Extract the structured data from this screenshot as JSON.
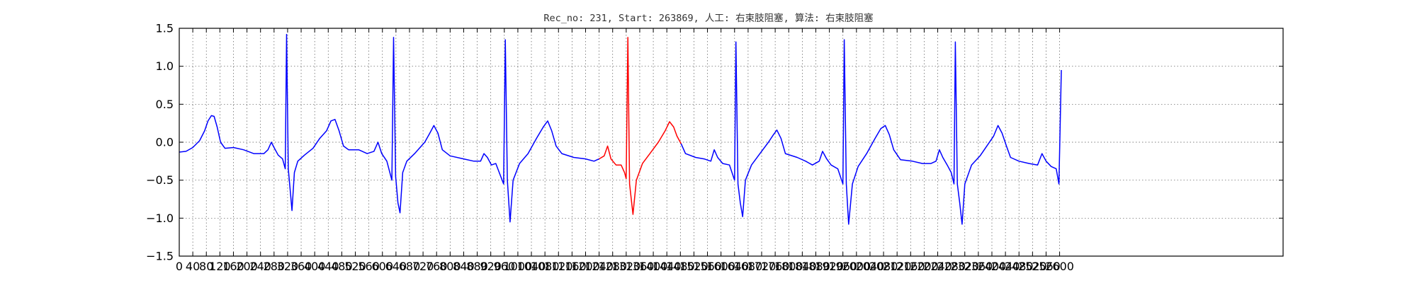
{
  "chart_data": {
    "type": "line",
    "title": "Rec_no: 231, Start: 263869, 人工: 右束肢阻塞, 算法: 右束肢阻塞",
    "xlabel": "",
    "ylabel": "",
    "xlim": [
      0,
      3260
    ],
    "ylim": [
      -1.5,
      1.5
    ],
    "grid": true,
    "x_ticks": [
      0,
      40,
      80,
      120,
      160,
      200,
      240,
      280,
      320,
      360,
      400,
      440,
      480,
      520,
      560,
      600,
      640,
      680,
      720,
      760,
      800,
      840,
      880,
      920,
      960,
      1000,
      1040,
      1080,
      1120,
      1160,
      1200,
      1240,
      1280,
      1320,
      1360,
      1400,
      1440,
      1480,
      1520,
      1560,
      1600,
      1640,
      1680,
      1720,
      1760,
      1800,
      1840,
      1880,
      1920,
      1960,
      2000,
      2040,
      2080,
      2120,
      2160,
      2200,
      2240,
      2280,
      2320,
      2360,
      2400,
      2440,
      2480,
      2520,
      2560,
      2600
    ],
    "x_tick_labels": [
      "0",
      "40",
      "80",
      "120",
      "160",
      "200",
      "240",
      "280",
      "320",
      "360",
      "400",
      "440",
      "480",
      "520",
      "560",
      "600",
      "640",
      "680",
      "720",
      "760",
      "800",
      "840",
      "880",
      "920",
      "960",
      "1000",
      "1040",
      "1080",
      "1120",
      "1160",
      "1200",
      "1240",
      "1280",
      "1320",
      "1360",
      "1400",
      "1440",
      "1480",
      "1520",
      "1560",
      "1600",
      "1640",
      "1680",
      "1720",
      "1760",
      "1800",
      "1840",
      "1880",
      "1920",
      "1960",
      "2000",
      "2040",
      "2080",
      "2120",
      "2160",
      "2200",
      "2240",
      "2280",
      "2320",
      "2360",
      "2400",
      "2440",
      "2480",
      "2520",
      "2560",
      "2600"
    ],
    "y_ticks": [
      -1.5,
      -1.0,
      -0.5,
      0.0,
      0.5,
      1.0,
      1.5
    ],
    "y_tick_labels": [
      "−1.5",
      "−1.0",
      "−0.5",
      "0.0",
      "0.5",
      "1.0",
      "1.5"
    ],
    "series": [
      {
        "color": "#0000ff",
        "points": [
          [
            0,
            -0.13
          ],
          [
            20,
            -0.12
          ],
          [
            40,
            -0.07
          ],
          [
            60,
            0.02
          ],
          [
            75,
            0.15
          ],
          [
            85,
            0.28
          ],
          [
            95,
            0.35
          ],
          [
            103,
            0.34
          ],
          [
            112,
            0.2
          ],
          [
            122,
            0.0
          ],
          [
            135,
            -0.08
          ],
          [
            160,
            -0.07
          ],
          [
            190,
            -0.1
          ],
          [
            220,
            -0.15
          ],
          [
            250,
            -0.15
          ],
          [
            262,
            -0.1
          ],
          [
            272,
            0.0
          ],
          [
            280,
            -0.07
          ],
          [
            292,
            -0.17
          ],
          [
            305,
            -0.22
          ],
          [
            313,
            -0.35
          ],
          [
            317,
            1.42
          ],
          [
            322,
            -0.35
          ],
          [
            327,
            -0.6
          ],
          [
            333,
            -0.9
          ],
          [
            340,
            -0.4
          ],
          [
            350,
            -0.25
          ],
          [
            370,
            -0.17
          ],
          [
            395,
            -0.08
          ],
          [
            415,
            0.05
          ],
          [
            435,
            0.15
          ],
          [
            448,
            0.28
          ],
          [
            460,
            0.3
          ],
          [
            472,
            0.15
          ],
          [
            485,
            -0.05
          ],
          [
            500,
            -0.1
          ],
          [
            530,
            -0.1
          ],
          [
            555,
            -0.15
          ],
          [
            575,
            -0.12
          ],
          [
            587,
            0.0
          ],
          [
            598,
            -0.15
          ],
          [
            613,
            -0.25
          ],
          [
            628,
            -0.5
          ],
          [
            633,
            1.38
          ],
          [
            639,
            -0.45
          ],
          [
            646,
            -0.8
          ],
          [
            652,
            -0.93
          ],
          [
            660,
            -0.4
          ],
          [
            672,
            -0.25
          ],
          [
            695,
            -0.15
          ],
          [
            725,
            0.0
          ],
          [
            740,
            0.12
          ],
          [
            752,
            0.22
          ],
          [
            764,
            0.12
          ],
          [
            777,
            -0.1
          ],
          [
            800,
            -0.18
          ],
          [
            840,
            -0.22
          ],
          [
            870,
            -0.25
          ],
          [
            890,
            -0.25
          ],
          [
            900,
            -0.15
          ],
          [
            910,
            -0.2
          ],
          [
            922,
            -0.3
          ],
          [
            935,
            -0.28
          ],
          [
            958,
            -0.55
          ],
          [
            963,
            1.35
          ],
          [
            969,
            -0.5
          ],
          [
            977,
            -1.05
          ],
          [
            986,
            -0.5
          ],
          [
            1005,
            -0.28
          ],
          [
            1030,
            -0.15
          ],
          [
            1055,
            0.05
          ],
          [
            1075,
            0.2
          ],
          [
            1088,
            0.28
          ],
          [
            1100,
            0.15
          ],
          [
            1113,
            -0.05
          ],
          [
            1130,
            -0.15
          ],
          [
            1165,
            -0.2
          ],
          [
            1200,
            -0.22
          ],
          [
            1225,
            -0.25
          ],
          [
            1240,
            -0.22
          ]
        ]
      },
      {
        "color": "#ff0000",
        "points": [
          [
            1240,
            -0.22
          ],
          [
            1255,
            -0.18
          ],
          [
            1265,
            -0.05
          ],
          [
            1275,
            -0.22
          ],
          [
            1290,
            -0.3
          ],
          [
            1305,
            -0.3
          ],
          [
            1315,
            -0.4
          ],
          [
            1320,
            -0.48
          ],
          [
            1325,
            1.38
          ],
          [
            1330,
            -0.55
          ],
          [
            1340,
            -0.95
          ],
          [
            1350,
            -0.5
          ],
          [
            1368,
            -0.28
          ],
          [
            1390,
            -0.15
          ],
          [
            1415,
            0.0
          ],
          [
            1435,
            0.15
          ],
          [
            1448,
            0.27
          ],
          [
            1460,
            0.2
          ],
          [
            1470,
            0.08
          ],
          [
            1482,
            -0.02
          ]
        ]
      },
      {
        "color": "#0000ff",
        "points": [
          [
            1482,
            -0.02
          ],
          [
            1495,
            -0.15
          ],
          [
            1525,
            -0.2
          ],
          [
            1550,
            -0.22
          ],
          [
            1570,
            -0.25
          ],
          [
            1580,
            -0.1
          ],
          [
            1590,
            -0.2
          ],
          [
            1605,
            -0.28
          ],
          [
            1625,
            -0.3
          ],
          [
            1640,
            -0.5
          ],
          [
            1644,
            1.32
          ],
          [
            1650,
            -0.55
          ],
          [
            1657,
            -0.8
          ],
          [
            1664,
            -0.98
          ],
          [
            1672,
            -0.5
          ],
          [
            1690,
            -0.3
          ],
          [
            1715,
            -0.15
          ],
          [
            1740,
            0.0
          ],
          [
            1755,
            0.1
          ],
          [
            1765,
            0.16
          ],
          [
            1777,
            0.05
          ],
          [
            1790,
            -0.15
          ],
          [
            1825,
            -0.2
          ],
          [
            1850,
            -0.25
          ],
          [
            1870,
            -0.3
          ],
          [
            1890,
            -0.25
          ],
          [
            1900,
            -0.12
          ],
          [
            1912,
            -0.22
          ],
          [
            1925,
            -0.3
          ],
          [
            1945,
            -0.35
          ],
          [
            1960,
            -0.55
          ],
          [
            1964,
            1.35
          ],
          [
            1970,
            -0.55
          ],
          [
            1977,
            -1.08
          ],
          [
            1988,
            -0.55
          ],
          [
            2005,
            -0.32
          ],
          [
            2030,
            -0.15
          ],
          [
            2055,
            0.05
          ],
          [
            2072,
            0.18
          ],
          [
            2085,
            0.22
          ],
          [
            2097,
            0.1
          ],
          [
            2110,
            -0.1
          ],
          [
            2130,
            -0.23
          ],
          [
            2165,
            -0.25
          ],
          [
            2195,
            -0.28
          ],
          [
            2220,
            -0.28
          ],
          [
            2235,
            -0.25
          ],
          [
            2245,
            -0.1
          ],
          [
            2255,
            -0.2
          ],
          [
            2268,
            -0.3
          ],
          [
            2280,
            -0.4
          ],
          [
            2288,
            -0.55
          ],
          [
            2292,
            1.32
          ],
          [
            2298,
            -0.55
          ],
          [
            2305,
            -0.8
          ],
          [
            2312,
            -1.08
          ],
          [
            2320,
            -0.55
          ],
          [
            2340,
            -0.3
          ],
          [
            2365,
            -0.18
          ],
          [
            2385,
            -0.05
          ],
          [
            2405,
            0.08
          ],
          [
            2418,
            0.22
          ],
          [
            2430,
            0.12
          ],
          [
            2443,
            -0.05
          ],
          [
            2455,
            -0.2
          ],
          [
            2480,
            -0.25
          ],
          [
            2510,
            -0.28
          ],
          [
            2535,
            -0.3
          ],
          [
            2548,
            -0.15
          ],
          [
            2560,
            -0.25
          ],
          [
            2575,
            -0.32
          ],
          [
            2590,
            -0.35
          ],
          [
            2598,
            -0.55
          ],
          [
            2605,
            0.95
          ]
        ]
      }
    ]
  }
}
